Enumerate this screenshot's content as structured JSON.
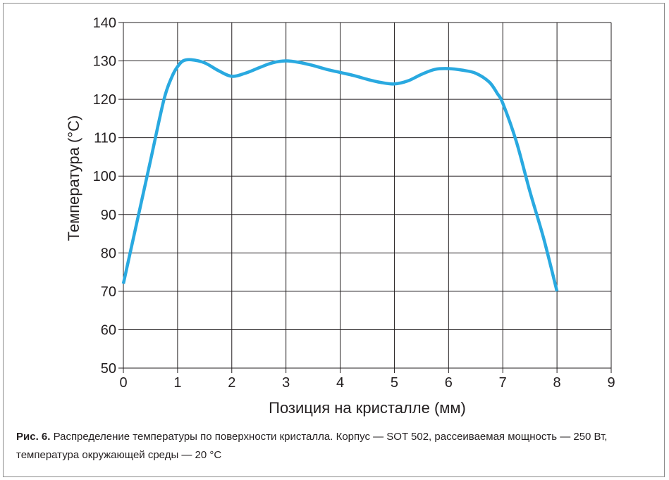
{
  "chart_data": {
    "type": "line",
    "xlabel": "Позиция на кристалле (мм)",
    "ylabel": "Температура (°С)",
    "xlim": [
      0,
      9
    ],
    "ylim": [
      50,
      140
    ],
    "xticks": [
      "0",
      "1",
      "2",
      "3",
      "4",
      "5",
      "6",
      "7",
      "8",
      "9"
    ],
    "yticks": [
      "50",
      "60",
      "70",
      "80",
      "90",
      "100",
      "110",
      "120",
      "130",
      "140"
    ],
    "grid": true,
    "series": [
      {
        "color": "#29a9e0",
        "x": [
          0,
          0.25,
          0.5,
          0.75,
          0.9,
          1.0,
          1.1,
          1.25,
          1.5,
          1.75,
          2.0,
          2.25,
          2.5,
          2.75,
          3.0,
          3.25,
          3.5,
          3.75,
          4.0,
          4.25,
          4.5,
          4.75,
          5.0,
          5.25,
          5.5,
          5.75,
          6.0,
          6.25,
          6.5,
          6.75,
          6.9,
          7.0,
          7.25,
          7.5,
          7.75,
          8.0
        ],
        "y": [
          72,
          88,
          104,
          120,
          126,
          128.5,
          130,
          130.3,
          129.5,
          127.5,
          126,
          126.8,
          128.2,
          129.5,
          130,
          129.6,
          128.8,
          127.8,
          127,
          126.2,
          125.2,
          124.4,
          124,
          124.8,
          126.5,
          127.8,
          128,
          127.6,
          126.8,
          124.5,
          121.5,
          119,
          109,
          96,
          84,
          70
        ]
      }
    ]
  },
  "caption": {
    "lead": "Рис. 6.",
    "text": " Распределение температуры по поверхности кристалла. Корпус — SOT 502, рассеиваемая мощность — 250 Вт, температура окружающей среды — 20 °С"
  }
}
